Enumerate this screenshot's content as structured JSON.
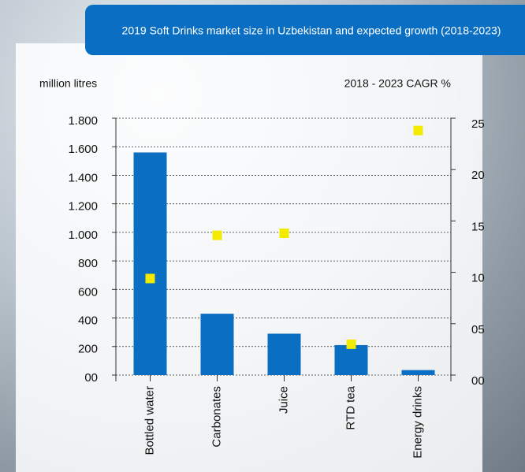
{
  "chart_data": {
    "type": "bar",
    "title": "2019 Soft Drinks market size in Uzbekistan and expected growth (2018-2023)",
    "y_label": "million litres",
    "y2_label": "2018 - 2023 CAGR %",
    "categories": [
      "Bottled water",
      "Carbonates",
      "Juice",
      "RTD tea",
      "Energy drinks"
    ],
    "series": [
      {
        "type": "bar",
        "color": "#0a6fc2",
        "values": [
          1560,
          430,
          290,
          210,
          35
        ]
      },
      {
        "type": "scatter",
        "color": "#f2ea00",
        "axis": "y2",
        "values": [
          9.4,
          13.6,
          13.8,
          3.0,
          23.8
        ]
      }
    ],
    "ylim": [
      0,
      1800
    ],
    "yticks": [
      {
        "value": 0,
        "label": "00"
      },
      200,
      400,
      600,
      800,
      {
        "value": 1000,
        "label": "1.000"
      },
      {
        "value": 1200,
        "label": "1.200"
      },
      {
        "value": 1400,
        "label": "1.400"
      },
      {
        "value": 1600,
        "label": "1.600"
      },
      {
        "value": 1800,
        "label": "1.800"
      }
    ],
    "y2lim": [
      0,
      25
    ],
    "y2ticks": [
      {
        "value": 0,
        "label": "00"
      },
      {
        "value": 5,
        "label": "05"
      },
      10,
      15,
      20,
      25
    ],
    "grid": true
  }
}
